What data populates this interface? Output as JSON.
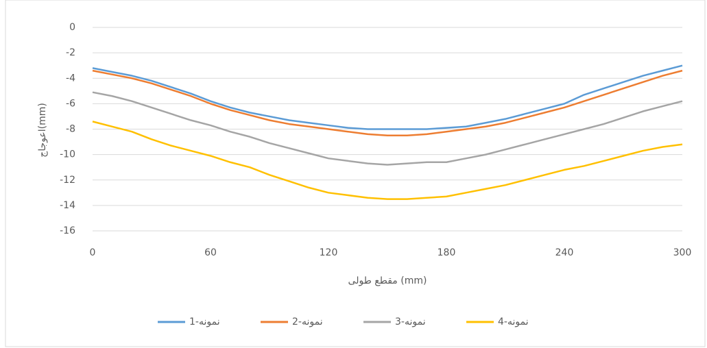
{
  "chart_data": {
    "type": "line",
    "xlabel": "مقطع طولی (mm)",
    "ylabel": "اعوجاج(mm)",
    "x": [
      0,
      10,
      20,
      30,
      40,
      50,
      60,
      70,
      80,
      90,
      100,
      110,
      120,
      130,
      140,
      150,
      160,
      170,
      180,
      190,
      200,
      210,
      220,
      230,
      240,
      250,
      260,
      270,
      280,
      290,
      300
    ],
    "series": [
      {
        "name": "نمونه-1",
        "color": "#5b9bd5",
        "values": [
          -3.2,
          -3.5,
          -3.8,
          -4.2,
          -4.7,
          -5.2,
          -5.8,
          -6.3,
          -6.7,
          -7.0,
          -7.3,
          -7.5,
          -7.7,
          -7.9,
          -8.0,
          -8.0,
          -8.0,
          -8.0,
          -7.9,
          -7.8,
          -7.5,
          -7.2,
          -6.8,
          -6.4,
          -6.0,
          -5.3,
          -4.8,
          -4.3,
          -3.8,
          -3.4,
          -3.0
        ]
      },
      {
        "name": "نمونه-2",
        "color": "#ed7d31",
        "values": [
          -3.4,
          -3.7,
          -4.0,
          -4.4,
          -4.9,
          -5.4,
          -6.0,
          -6.5,
          -6.9,
          -7.3,
          -7.6,
          -7.8,
          -8.0,
          -8.2,
          -8.4,
          -8.5,
          -8.5,
          -8.4,
          -8.2,
          -8.0,
          -7.8,
          -7.5,
          -7.1,
          -6.7,
          -6.3,
          -5.8,
          -5.3,
          -4.8,
          -4.3,
          -3.8,
          -3.4
        ]
      },
      {
        "name": "نمونه-3",
        "color": "#a5a5a5",
        "values": [
          -5.1,
          -5.4,
          -5.8,
          -6.3,
          -6.8,
          -7.3,
          -7.7,
          -8.2,
          -8.6,
          -9.1,
          -9.5,
          -9.9,
          -10.3,
          -10.5,
          -10.7,
          -10.8,
          -10.7,
          -10.6,
          -10.6,
          -10.3,
          -10.0,
          -9.6,
          -9.2,
          -8.8,
          -8.4,
          -8.0,
          -7.6,
          -7.1,
          -6.6,
          -6.2,
          -5.8
        ]
      },
      {
        "name": "نمونه-4",
        "color": "#ffc000",
        "values": [
          -7.4,
          -7.8,
          -8.2,
          -8.8,
          -9.3,
          -9.7,
          -10.1,
          -10.6,
          -11.0,
          -11.6,
          -12.1,
          -12.6,
          -13.0,
          -13.2,
          -13.4,
          -13.5,
          -13.5,
          -13.4,
          -13.3,
          -13.0,
          -12.7,
          -12.4,
          -12.0,
          -11.6,
          -11.2,
          -10.9,
          -10.5,
          -10.1,
          -9.7,
          -9.4,
          -9.2
        ]
      }
    ],
    "xlim": [
      0,
      300
    ],
    "xticks": [
      0,
      60,
      120,
      180,
      240,
      300
    ],
    "ylim": [
      -16,
      0
    ],
    "yticks": [
      0,
      -2,
      -4,
      -6,
      -8,
      -10,
      -12,
      -14,
      -16
    ],
    "grid": true,
    "legend": "bottom"
  }
}
